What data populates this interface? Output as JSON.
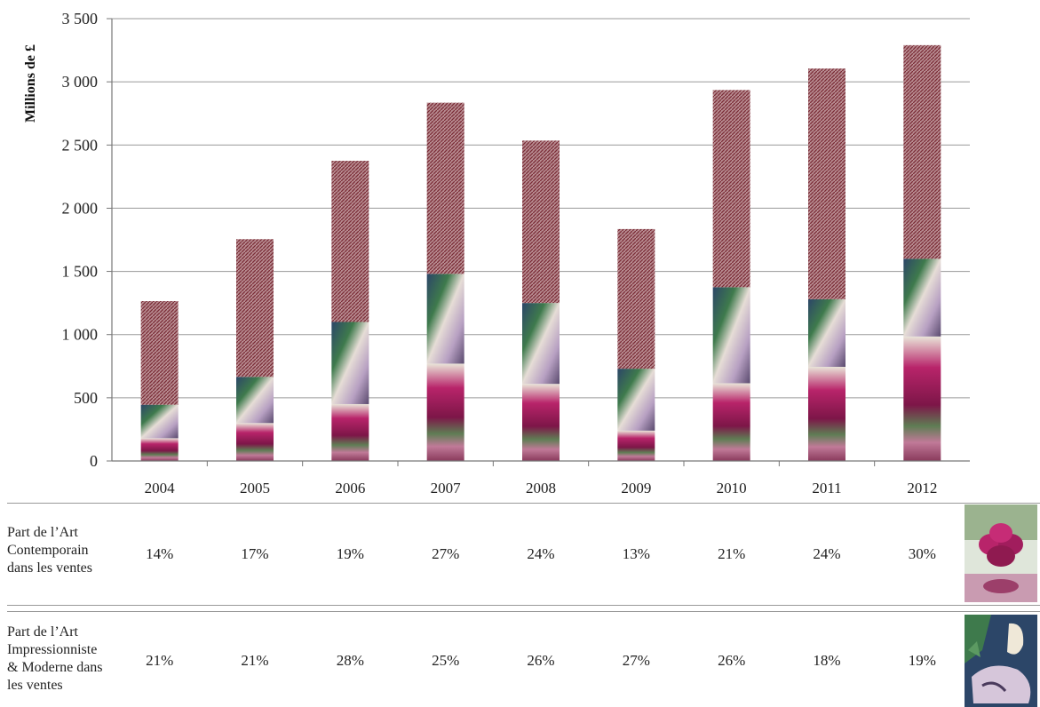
{
  "chart_data": {
    "type": "bar",
    "stacked": true,
    "ylabel": "Millions de £",
    "xlabel": "",
    "ylim": [
      0,
      3500
    ],
    "yticks": [
      "0",
      "500",
      "1 000",
      "1 500",
      "2 000",
      "2 500",
      "3 000",
      "3 500"
    ],
    "grid": true,
    "categories": [
      "2004",
      "2005",
      "2006",
      "2007",
      "2008",
      "2009",
      "2010",
      "2011",
      "2012"
    ],
    "series": [
      {
        "values": [
          180,
          300,
          450,
          770,
          610,
          240,
          615,
          745,
          985
        ]
      },
      {
        "values": [
          265,
          365,
          650,
          710,
          640,
          490,
          760,
          535,
          615
        ]
      },
      {
        "values": [
          820,
          1090,
          1275,
          1355,
          1285,
          1105,
          1560,
          1825,
          1690
        ]
      }
    ],
    "totals": [
      1265,
      1755,
      2375,
      2835,
      2535,
      1835,
      2935,
      3105,
      3290
    ]
  },
  "table": {
    "rows": [
      {
        "label": [
          "Part de l’Art",
          "Contemporain",
          "dans les ventes"
        ],
        "values": [
          "14%",
          "17%",
          "19%",
          "27%",
          "24%",
          "13%",
          "21%",
          "24%",
          "30%"
        ]
      },
      {
        "label": [
          "Part de l’Art",
          "Impressionniste",
          "& Moderne dans",
          "les ventes"
        ],
        "values": [
          "21%",
          "21%",
          "28%",
          "25%",
          "26%",
          "27%",
          "26%",
          "18%",
          "19%"
        ]
      }
    ]
  },
  "icons": {
    "contemporary": "balloon-flower-sculpture-image",
    "modern": "cubist-painting-image"
  },
  "colors": {
    "maroon": "#8e3a44",
    "magenta": "#b8246a",
    "green": "#3e7a4c",
    "navy": "#2c4668",
    "lilac": "#cdb3c8"
  }
}
